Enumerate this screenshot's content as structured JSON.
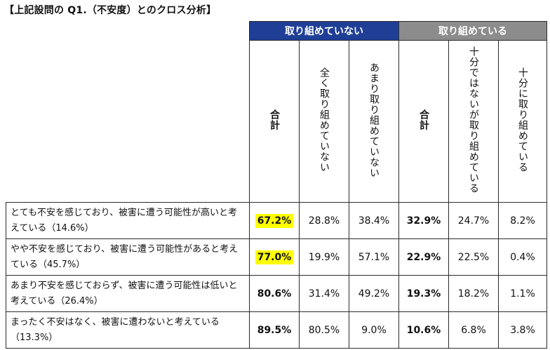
{
  "title": "【上記設問の Q1.（不安度）とのクロス分析】",
  "groups": {
    "not_working": "取り組めていない",
    "working": "取り組めている"
  },
  "columns": {
    "total_a": "合計",
    "not_at_all": "全く取り組めていない",
    "not_much": "あまり取り組めていない",
    "total_b": "合計",
    "not_enough": "十分ではないが取り組めている",
    "enough": "十分に取り組めている"
  },
  "rows": [
    {
      "label": "とても不安を感じており、被害に遭う可能性が高いと考えている（14.6%）",
      "values": [
        "67.2%",
        "28.8%",
        "38.4%",
        "32.9%",
        "24.7%",
        "8.2%"
      ]
    },
    {
      "label": "やや不安を感じており、被害に遭う可能性があると考えている（45.7%）",
      "values": [
        "77.0%",
        "19.9%",
        "57.1%",
        "22.9%",
        "22.5%",
        "0.4%"
      ]
    },
    {
      "label": "あまり不安を感じておらず、被害に遭う可能性は低いと考えている（26.4%）",
      "values": [
        "80.6%",
        "31.4%",
        "49.2%",
        "19.3%",
        "18.2%",
        "1.1%"
      ]
    },
    {
      "label": "まったく不安はなく、被害に遭わないと考えている（13.3%）",
      "values": [
        "89.5%",
        "80.5%",
        "9.0%",
        "10.6%",
        "6.8%",
        "3.8%"
      ]
    }
  ],
  "colors": {
    "group_a": "#1f3f96",
    "group_b": "#8c8c8c",
    "highlight": "#ffff00"
  }
}
